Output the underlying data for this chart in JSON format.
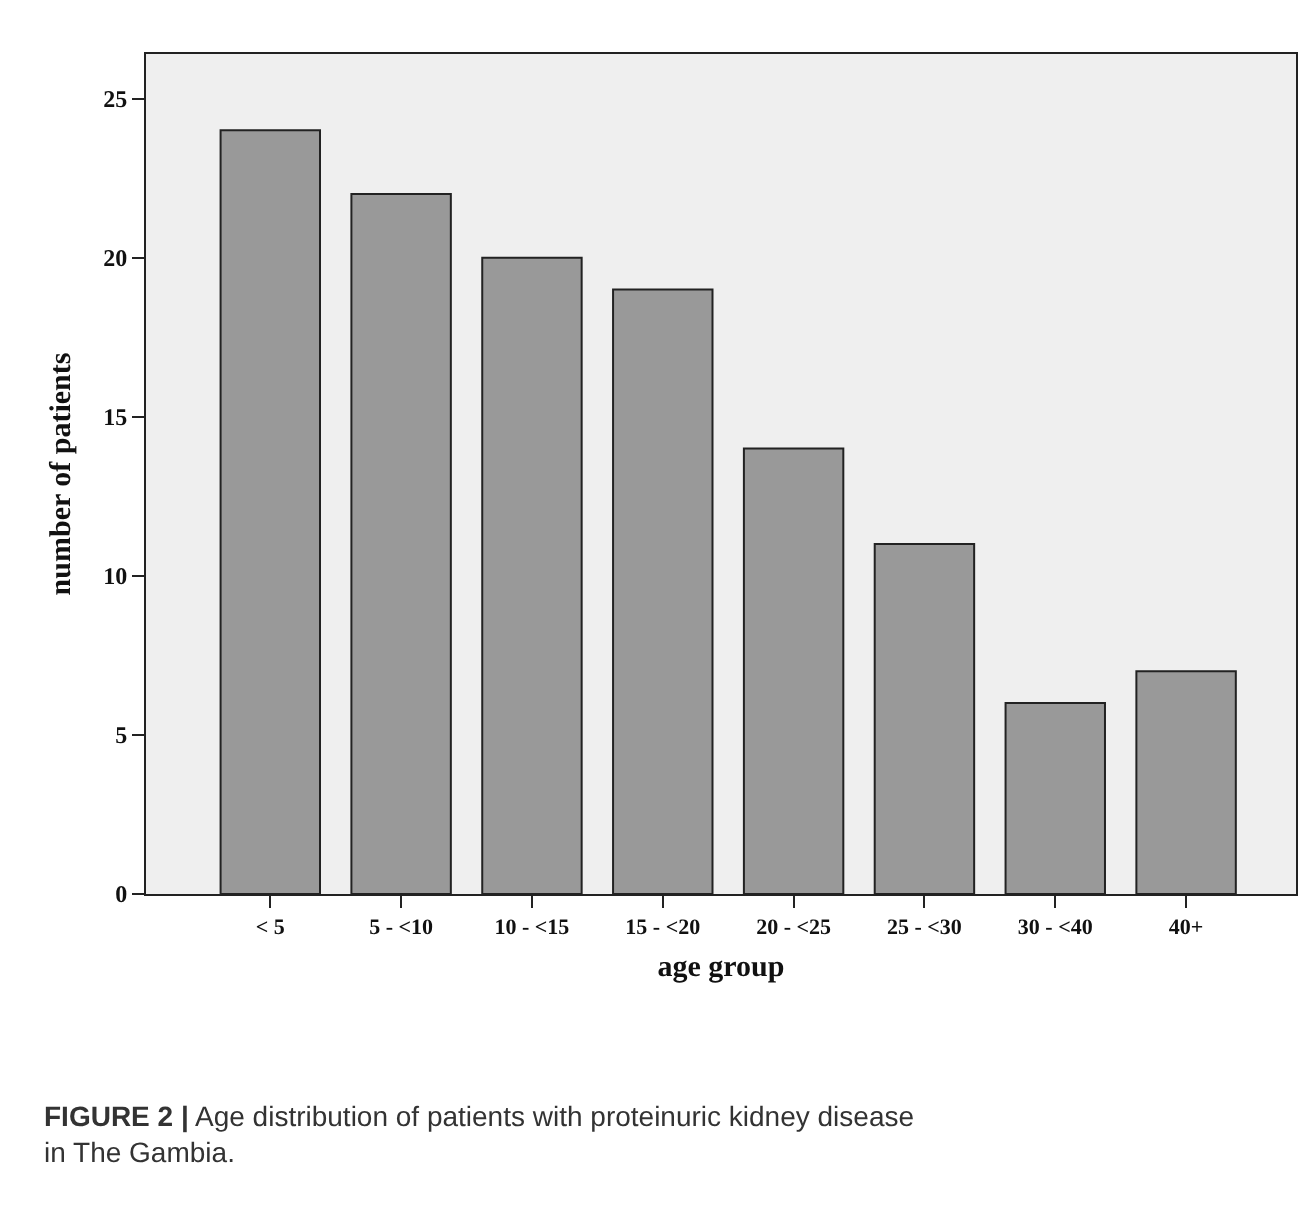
{
  "chart_data": {
    "type": "bar",
    "xlabel": "age group",
    "ylabel": "number of patients",
    "categories": [
      "< 5",
      "5 - <10",
      "10 - <15",
      "15 - <20",
      "20 - <25",
      "25 - <30",
      "30 - <40",
      "40+"
    ],
    "values": [
      24,
      22,
      20,
      19,
      14,
      11,
      6,
      7
    ],
    "color": "#999999",
    "ylim": [
      0,
      26.4
    ],
    "yticks": [
      0,
      5,
      10,
      15,
      20,
      25
    ],
    "grid": false,
    "legend": false,
    "annotations": [
      "FIGURE 2 | Age distribution of patients with proteinuric kidney disease in The Gambia."
    ]
  }
}
